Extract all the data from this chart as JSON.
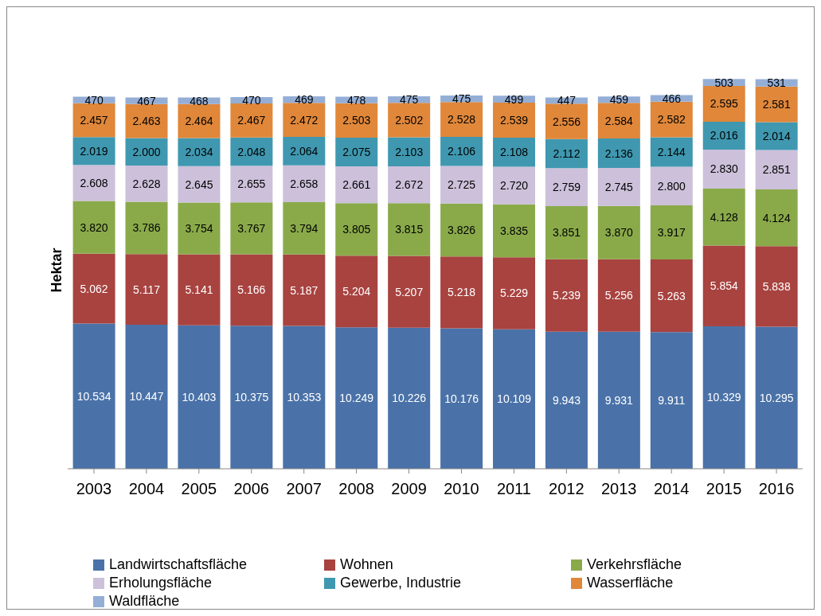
{
  "chart_data": {
    "type": "bar",
    "stacked": true,
    "ylabel": "Hektar",
    "legend": "bottom",
    "categories": [
      "2003",
      "2004",
      "2005",
      "2006",
      "2007",
      "2008",
      "2009",
      "2010",
      "2011",
      "2012",
      "2013",
      "2014",
      "2015",
      "2016"
    ],
    "series": [
      {
        "name": "Landwirtschaftsfläche",
        "color": "#4a72a8",
        "values": [
          10534,
          10447,
          10403,
          10375,
          10353,
          10249,
          10226,
          10176,
          10109,
          9943,
          9931,
          9911,
          10329,
          10295
        ],
        "value_labels": [
          "10.534",
          "10.447",
          "10.403",
          "10.375",
          "10.353",
          "10.249",
          "10.226",
          "10.176",
          "10.109",
          "9.943",
          "9.931",
          "9.911",
          "10.329",
          "10.295"
        ]
      },
      {
        "name": "Wohnen",
        "color": "#a84340",
        "values": [
          5062,
          5117,
          5141,
          5166,
          5187,
          5204,
          5207,
          5218,
          5229,
          5239,
          5256,
          5263,
          5854,
          5838
        ],
        "value_labels": [
          "5.062",
          "5.117",
          "5.141",
          "5.166",
          "5.187",
          "5.204",
          "5.207",
          "5.218",
          "5.229",
          "5.239",
          "5.256",
          "5.263",
          "5.854",
          "5.838"
        ]
      },
      {
        "name": "Verkehrsfläche",
        "color": "#8aaa4a",
        "values": [
          3820,
          3786,
          3754,
          3767,
          3794,
          3805,
          3815,
          3826,
          3835,
          3851,
          3870,
          3917,
          4128,
          4124
        ],
        "value_labels": [
          "3.820",
          "3.786",
          "3.754",
          "3.767",
          "3.794",
          "3.805",
          "3.815",
          "3.826",
          "3.835",
          "3.851",
          "3.870",
          "3.917",
          "4.128",
          "4.124"
        ]
      },
      {
        "name": "Erholungsfläche",
        "color": "#ccc0da",
        "values": [
          2608,
          2628,
          2645,
          2655,
          2658,
          2661,
          2672,
          2725,
          2720,
          2759,
          2745,
          2800,
          2830,
          2851
        ],
        "value_labels": [
          "2.608",
          "2.628",
          "2.645",
          "2.655",
          "2.658",
          "2.661",
          "2.672",
          "2.725",
          "2.720",
          "2.759",
          "2.745",
          "2.800",
          "2.830",
          "2.851"
        ]
      },
      {
        "name": "Gewerbe, Industrie",
        "color": "#3f98b0",
        "values": [
          2019,
          2000,
          2034,
          2048,
          2064,
          2075,
          2103,
          2106,
          2108,
          2112,
          2136,
          2144,
          2016,
          2014
        ],
        "value_labels": [
          "2.019",
          "2.000",
          "2.034",
          "2.048",
          "2.064",
          "2.075",
          "2.103",
          "2.106",
          "2.108",
          "2.112",
          "2.136",
          "2.144",
          "2.016",
          "2.014"
        ]
      },
      {
        "name": "Wasserfläche",
        "color": "#e0873a",
        "values": [
          2457,
          2463,
          2464,
          2467,
          2472,
          2503,
          2502,
          2528,
          2539,
          2556,
          2584,
          2582,
          2595,
          2581
        ],
        "value_labels": [
          "2.457",
          "2.463",
          "2.464",
          "2.467",
          "2.472",
          "2.503",
          "2.502",
          "2.528",
          "2.539",
          "2.556",
          "2.584",
          "2.582",
          "2.595",
          "2.581"
        ]
      },
      {
        "name": "Waldfläche",
        "color": "#94aed6",
        "values": [
          470,
          467,
          468,
          470,
          469,
          478,
          475,
          475,
          499,
          447,
          459,
          466,
          503,
          531
        ],
        "value_labels": [
          "470",
          "467",
          "468",
          "470",
          "469",
          "478",
          "475",
          "475",
          "499",
          "447",
          "459",
          "466",
          "503",
          "531"
        ]
      }
    ]
  }
}
